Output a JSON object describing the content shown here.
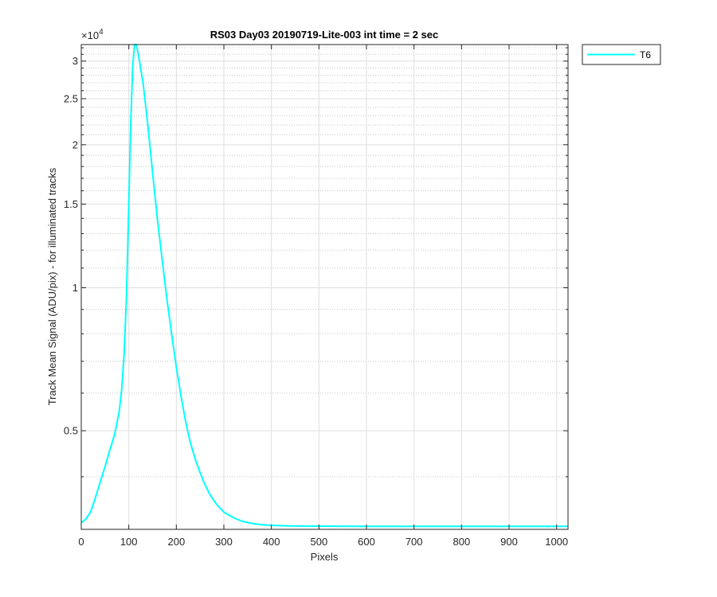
{
  "chart_data": {
    "type": "line",
    "title": "RS03 Day03 20190719-Lite-003 int time = 2 sec",
    "xlabel": "Pixels",
    "ylabel": "Track Mean Signal (ADU/pix) - for illuminated tracks",
    "y_exponent_label": "×10",
    "y_exponent_power": "4",
    "y_scale": "log",
    "y_multiplier": 10000,
    "xlim": [
      0,
      1024
    ],
    "ylim": [
      3100,
      32500
    ],
    "grid": true,
    "legend_position": "outside-top-right",
    "x_ticks": [
      0,
      100,
      200,
      300,
      400,
      500,
      600,
      700,
      800,
      900,
      1000
    ],
    "x_tick_labels": [
      "0",
      "100",
      "200",
      "300",
      "400",
      "500",
      "600",
      "700",
      "800",
      "900",
      "1000"
    ],
    "y_ticks": [
      5000,
      10000,
      15000,
      20000,
      25000,
      30000
    ],
    "y_tick_labels": [
      "0.5",
      "1",
      "1.5",
      "2",
      "2.5",
      "3"
    ],
    "y_minor_ticks": [
      4000,
      6000,
      7000,
      8000,
      9000,
      11000,
      12000,
      13000,
      14000,
      16000,
      17000,
      18000,
      19000,
      21000,
      22000,
      23000,
      24000,
      26000,
      27000,
      28000,
      29000,
      31000,
      32000
    ],
    "colors": {
      "series": "#00ffff",
      "axes": "#262626",
      "grid": "#dfdfdf"
    },
    "series": [
      {
        "name": "T6",
        "x": [
          0,
          10,
          20,
          30,
          40,
          50,
          60,
          70,
          80,
          85,
          90,
          95,
          100,
          104,
          108,
          112,
          116,
          120,
          130,
          140,
          150,
          160,
          170,
          180,
          190,
          200,
          210,
          220,
          230,
          240,
          250,
          260,
          270,
          280,
          290,
          300,
          320,
          340,
          360,
          380,
          400,
          450,
          500,
          600,
          700,
          800,
          900,
          1000,
          1024
        ],
        "y": [
          3200,
          3260,
          3380,
          3620,
          3900,
          4200,
          4550,
          4900,
          5500,
          6100,
          7200,
          9500,
          15000,
          22000,
          29000,
          32500,
          32500,
          31000,
          27000,
          22000,
          17500,
          14000,
          11500,
          9500,
          8000,
          6800,
          5900,
          5200,
          4700,
          4350,
          4080,
          3850,
          3680,
          3550,
          3450,
          3370,
          3280,
          3220,
          3190,
          3170,
          3160,
          3150,
          3148,
          3145,
          3145,
          3145,
          3145,
          3145,
          3145
        ]
      }
    ]
  }
}
